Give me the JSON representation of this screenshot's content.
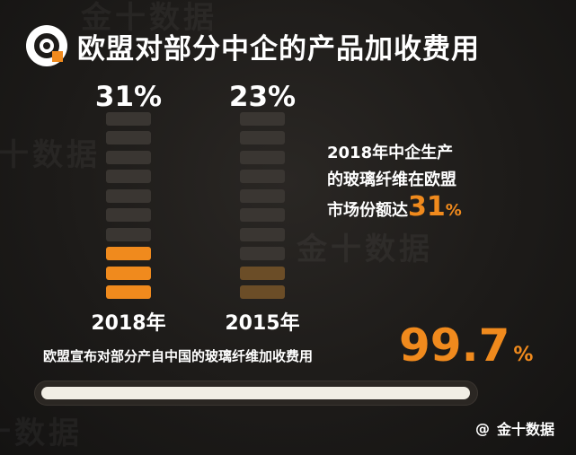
{
  "header": {
    "title": "欧盟对部分中企的产品加收费用",
    "logo_icon": "jin10-logo-icon"
  },
  "watermark": {
    "text": "金十数据"
  },
  "chart_data": {
    "type": "bar",
    "categories": [
      "2018年",
      "2015年"
    ],
    "values": [
      31,
      23
    ],
    "value_labels": [
      "31%",
      "23%"
    ],
    "unit": "%",
    "ylim": [
      0,
      100
    ],
    "segments_per_bar": 10,
    "colors": [
      "#f08a1d",
      "#6b4d27"
    ],
    "empty_color": "#3a3632"
  },
  "stat": {
    "line1": "2018年中企生产",
    "line2": "的玻璃纤维在欧盟",
    "line3_text": "市场份额达",
    "line3_value": "31",
    "line3_unit": "%"
  },
  "tariff": {
    "label": "欧盟宣布对部分产自中国的玻璃纤维加收费用",
    "value": "99.7",
    "unit": "%",
    "progress_fraction": 0.997
  },
  "source": {
    "label": "金十数据",
    "prefix_icon": "at-icon"
  }
}
